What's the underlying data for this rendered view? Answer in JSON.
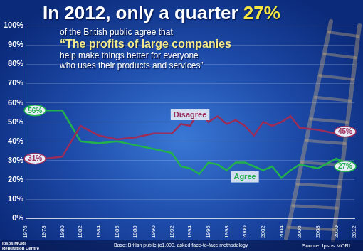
{
  "chart_data": {
    "type": "line",
    "title": {
      "text": "In 2012, only a quarter",
      "highlight": "27%"
    },
    "subtitle": "of the British public agree that",
    "quote": [
      "“The profits of large companies",
      "help make things better for everyone",
      "who uses their products and services”"
    ],
    "x": [
      1976,
      1978,
      1980,
      1982,
      1984,
      1986,
      1988,
      1990,
      1992,
      1993,
      1994,
      1995,
      1996,
      1997,
      1998,
      1999,
      2000,
      2001,
      2002,
      2003,
      2004,
      2005,
      2006,
      2008,
      2010,
      2012
    ],
    "xlim": [
      1976,
      2012
    ],
    "xticks": [
      1976,
      1978,
      1980,
      1982,
      1984,
      1986,
      1988,
      1990,
      1992,
      1994,
      1996,
      1998,
      2000,
      2002,
      2004,
      2006,
      2008,
      2010,
      2012
    ],
    "ylim": [
      0,
      100
    ],
    "yticks": [
      {
        "value": 0,
        "label": "0%"
      },
      {
        "value": 10,
        "label": "10%"
      },
      {
        "value": 20,
        "label": "20%"
      },
      {
        "value": 30,
        "label": "30%"
      },
      {
        "value": 40,
        "label": "40%"
      },
      {
        "value": 50,
        "label": "50%"
      },
      {
        "value": 60,
        "label": "60%"
      },
      {
        "value": 70,
        "label": "70%"
      },
      {
        "value": 80,
        "label": "80%"
      },
      {
        "value": 90,
        "label": "90%"
      },
      {
        "value": 100,
        "label": "100%"
      }
    ],
    "grid": true,
    "series": [
      {
        "name": "Disagree",
        "color": "#9b2d5a",
        "values": [
          31,
          31,
          32,
          48,
          43,
          41,
          42,
          44,
          44,
          49,
          48,
          56,
          50,
          53,
          49,
          51,
          48,
          43,
          50,
          48,
          50,
          53,
          47,
          46,
          44,
          45
        ],
        "point_labels": [
          {
            "x": 1976,
            "label": "31%"
          },
          {
            "x": 2012,
            "label": "45%"
          }
        ]
      },
      {
        "name": "Agree",
        "color": "#22b14c",
        "values": [
          56,
          56,
          56,
          40,
          39,
          40,
          38,
          36,
          34,
          27,
          26,
          23,
          29,
          28,
          25,
          29,
          29,
          27,
          25,
          27,
          21,
          25,
          28,
          26,
          31,
          27
        ],
        "point_labels": [
          {
            "x": 1976,
            "label": "56%"
          },
          {
            "x": 2012,
            "label": "27%"
          }
        ]
      }
    ],
    "footer": {
      "logo": [
        "Ipsos MORI",
        "Reputation Centre"
      ],
      "base": "Base: British public (c1,000, asked face-to-face methodology",
      "source": "Source: Ipsos MORI"
    }
  }
}
